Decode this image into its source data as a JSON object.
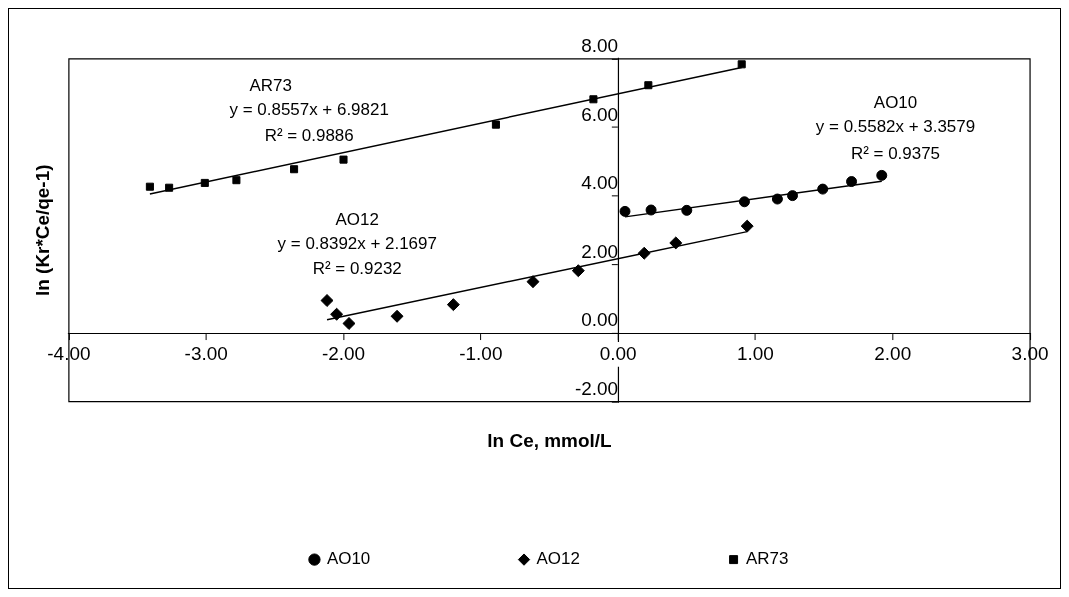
{
  "chart_data": {
    "type": "scatter",
    "xlabel": "ln Ce, mmol/L",
    "ylabel": "ln (Kr*Ce/qe-1)",
    "xlim": [
      -4,
      3
    ],
    "ylim": [
      -2,
      8
    ],
    "xticks": [
      {
        "value": -4,
        "label": "-4.00"
      },
      {
        "value": -3,
        "label": "-3.00"
      },
      {
        "value": -2,
        "label": "-2.00"
      },
      {
        "value": -1,
        "label": "-1.00"
      },
      {
        "value": 0,
        "label": "0.00"
      },
      {
        "value": 1,
        "label": "1.00"
      },
      {
        "value": 2,
        "label": "2.00"
      },
      {
        "value": 3,
        "label": "3.00"
      }
    ],
    "yticks": [
      {
        "value": -2,
        "label": "-2.00"
      },
      {
        "value": 0,
        "label": "0.00"
      },
      {
        "value": 2,
        "label": "2.00"
      },
      {
        "value": 4,
        "label": "4.00"
      },
      {
        "value": 6,
        "label": "6.00"
      },
      {
        "value": 8,
        "label": "8.00"
      }
    ],
    "grid": false,
    "legend": "bottom",
    "series": [
      {
        "name": "AO10",
        "type": "scatter",
        "color": "#000000",
        "marker": "circle",
        "x": [
          0.05,
          0.24,
          0.5,
          0.92,
          1.16,
          1.27,
          1.49,
          1.7,
          1.92
        ],
        "values": [
          3.55,
          3.59,
          3.58,
          3.83,
          3.91,
          4.01,
          4.2,
          4.42,
          4.6
        ]
      },
      {
        "name": "AO12",
        "type": "scatter",
        "color": "#000000",
        "marker": "diamond",
        "x": [
          -2.12,
          -2.05,
          -1.96,
          -1.61,
          -1.2,
          -0.62,
          -0.29,
          0.19,
          0.42,
          0.94
        ],
        "values": [
          0.95,
          0.55,
          0.28,
          0.49,
          0.83,
          1.5,
          1.82,
          2.33,
          2.63,
          3.12
        ]
      },
      {
        "name": "AR73",
        "type": "scatter",
        "color": "#000000",
        "marker": "square",
        "x": [
          -3.41,
          -3.27,
          -3.01,
          -2.78,
          -2.36,
          -2.0,
          -0.89,
          -0.18,
          0.22,
          0.9
        ],
        "values": [
          4.27,
          4.24,
          4.38,
          4.46,
          4.78,
          5.06,
          6.08,
          6.82,
          7.23,
          7.84
        ]
      },
      {
        "type": "line",
        "color": "#000000",
        "marker": "none",
        "line_style": "solid",
        "x": [
          0.05,
          1.92
        ],
        "values": [
          3.39,
          4.43
        ]
      },
      {
        "type": "line",
        "color": "#000000",
        "marker": "none",
        "line_style": "solid",
        "x": [
          -2.12,
          0.94
        ],
        "values": [
          0.39,
          2.96
        ]
      },
      {
        "type": "line",
        "color": "#000000",
        "marker": "none",
        "line_style": "solid",
        "x": [
          -3.41,
          0.9
        ],
        "values": [
          4.06,
          7.75
        ]
      }
    ],
    "annotations": [
      "AR73",
      "y = 0.8557x + 6.9821",
      "R² = 0.9886",
      "AO12",
      "y = 0.8392x + 2.1697",
      "R² = 0.9232",
      "AO10",
      "y = 0.5582x + 3.3579",
      "R² = 0.9375"
    ]
  }
}
